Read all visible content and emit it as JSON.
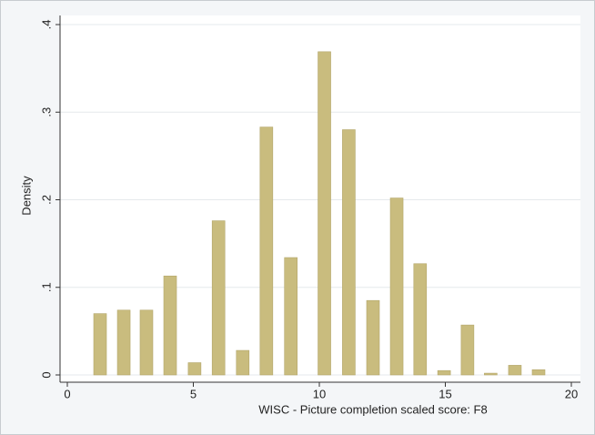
{
  "chart_data": {
    "type": "bar",
    "x_label": "WISC - Picture completion scaled score: F8",
    "y_label": "Density",
    "x": [
      1.3,
      2.24,
      3.14,
      4.08,
      5.05,
      6.0,
      6.96,
      7.9,
      8.87,
      10.2,
      11.17,
      12.13,
      13.07,
      14.0,
      14.95,
      15.88,
      16.8,
      17.76,
      18.7
    ],
    "values": [
      0.07,
      0.074,
      0.074,
      0.113,
      0.014,
      0.176,
      0.028,
      0.283,
      0.134,
      0.369,
      0.28,
      0.085,
      0.202,
      0.127,
      0.005,
      0.057,
      0.002,
      0.011,
      0.006
    ],
    "color": "#c9bc7e",
    "xlim": [
      0,
      20
    ],
    "xticks": [
      0,
      5,
      10,
      15,
      20
    ],
    "ylim": [
      0,
      0.4
    ],
    "yticks": [
      0,
      {
        "value": 0.1,
        "label": ".1"
      },
      {
        "value": 0.2,
        "label": ".2"
      },
      {
        "value": 0.3,
        "label": ".3"
      },
      {
        "value": 0.4,
        "label": ".4"
      }
    ],
    "grid": true
  }
}
